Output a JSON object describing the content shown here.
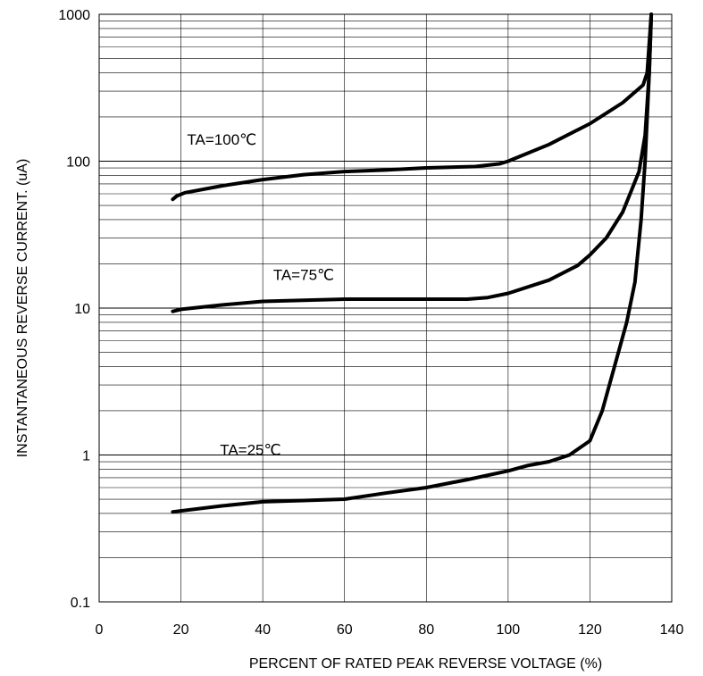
{
  "chart_data": {
    "type": "line",
    "title": "",
    "xlabel": "PERCENT OF RATED PEAK REVERSE VOLTAGE (%)",
    "ylabel": "INSTANTANEOUS REVERSE CURRENT. (uA)",
    "xlim": [
      0,
      140
    ],
    "ylim": [
      0.1,
      1000
    ],
    "y_scale": "log",
    "x_ticks": [
      "0",
      "20",
      "40",
      "60",
      "80",
      "100",
      "120",
      "140"
    ],
    "y_ticks": [
      "0.1",
      "1",
      "10",
      "100",
      "1000"
    ],
    "grid": true,
    "series": [
      {
        "name": "TA=100℃",
        "points": [
          [
            18,
            55
          ],
          [
            19,
            58
          ],
          [
            21,
            61
          ],
          [
            30,
            68
          ],
          [
            40,
            75
          ],
          [
            50,
            81
          ],
          [
            60,
            85
          ],
          [
            70,
            87
          ],
          [
            80,
            90
          ],
          [
            92,
            92
          ],
          [
            98,
            96
          ],
          [
            100,
            100
          ],
          [
            110,
            130
          ],
          [
            120,
            180
          ],
          [
            128,
            250
          ],
          [
            133,
            330
          ],
          [
            134,
            400
          ],
          [
            135,
            1000
          ]
        ]
      },
      {
        "name": "TA=75℃",
        "points": [
          [
            18,
            9.5
          ],
          [
            20,
            9.8
          ],
          [
            30,
            10.5
          ],
          [
            40,
            11.1
          ],
          [
            50,
            11.3
          ],
          [
            60,
            11.5
          ],
          [
            70,
            11.5
          ],
          [
            80,
            11.5
          ],
          [
            90,
            11.5
          ],
          [
            95,
            11.8
          ],
          [
            100,
            12.6
          ],
          [
            110,
            15.5
          ],
          [
            117,
            19.5
          ],
          [
            120,
            23
          ],
          [
            124,
            30
          ],
          [
            128,
            45
          ],
          [
            132,
            85
          ],
          [
            133.5,
            150
          ],
          [
            134.5,
            400
          ],
          [
            135,
            1000
          ]
        ]
      },
      {
        "name": "TA=25℃",
        "points": [
          [
            18,
            0.41
          ],
          [
            30,
            0.45
          ],
          [
            40,
            0.48
          ],
          [
            50,
            0.49
          ],
          [
            60,
            0.5
          ],
          [
            70,
            0.55
          ],
          [
            80,
            0.6
          ],
          [
            90,
            0.68
          ],
          [
            100,
            0.78
          ],
          [
            105,
            0.85
          ],
          [
            110,
            0.9
          ],
          [
            115,
            1.0
          ],
          [
            120,
            1.25
          ],
          [
            123,
            2.0
          ],
          [
            126,
            4.0
          ],
          [
            129,
            8.0
          ],
          [
            131,
            15
          ],
          [
            132.5,
            40
          ],
          [
            133.5,
            100
          ],
          [
            134.5,
            400
          ],
          [
            135,
            1000
          ]
        ]
      }
    ]
  }
}
